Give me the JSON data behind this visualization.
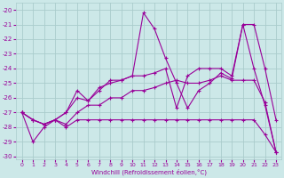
{
  "xlabel": "Windchill (Refroidissement éolien,°C)",
  "bg_color": "#cce8e8",
  "grid_color": "#aacccc",
  "line_color": "#990099",
  "xlim": [
    -0.5,
    23.5
  ],
  "ylim": [
    -30.2,
    -19.5
  ],
  "yticks": [
    -30,
    -29,
    -28,
    -27,
    -26,
    -25,
    -24,
    -23,
    -22,
    -21,
    -20
  ],
  "xticks": [
    0,
    1,
    2,
    3,
    4,
    5,
    6,
    7,
    8,
    9,
    10,
    11,
    12,
    13,
    14,
    15,
    16,
    17,
    18,
    19,
    20,
    21,
    22,
    23
  ],
  "lines": [
    {
      "x": [
        0,
        1,
        2,
        3,
        4,
        5,
        6,
        7,
        8,
        9,
        10,
        11,
        12,
        13,
        14,
        15,
        16,
        17,
        18,
        19,
        20,
        21,
        22,
        23
      ],
      "y": [
        -27,
        -29,
        -28,
        -27.5,
        -28,
        -27.5,
        -27.5,
        -27.5,
        -27.5,
        -27.5,
        -27.5,
        -27.5,
        -27.5,
        -27.5,
        -27.5,
        -27.5,
        -27.5,
        -27.5,
        -27.5,
        -27.5,
        -27.5,
        -27.5,
        -28.5,
        -29.7
      ]
    },
    {
      "x": [
        0,
        1,
        2,
        3,
        4,
        5,
        6,
        7,
        8,
        9,
        10,
        11,
        12,
        13,
        14,
        15,
        16,
        17,
        18,
        19,
        20,
        21,
        22,
        23
      ],
      "y": [
        -27,
        -27.5,
        -27.8,
        -27.5,
        -27.8,
        -27,
        -26.5,
        -26.5,
        -26,
        -26,
        -25.5,
        -25.5,
        -25.3,
        -25,
        -24.8,
        -25,
        -25,
        -24.8,
        -24.5,
        -24.8,
        -24.8,
        -24.8,
        -26.3,
        -29.7
      ]
    },
    {
      "x": [
        0,
        1,
        2,
        3,
        4,
        5,
        6,
        7,
        8,
        9,
        10,
        11,
        12,
        13,
        14,
        15,
        16,
        17,
        18,
        19,
        20,
        21,
        22,
        23
      ],
      "y": [
        -27,
        -27.5,
        -27.8,
        -27.5,
        -27,
        -25.5,
        -26.2,
        -25.3,
        -25,
        -24.8,
        -24.5,
        -20.2,
        -21.3,
        -23.3,
        -25,
        -26.7,
        -25.5,
        -25,
        -24.3,
        -24.7,
        -21.0,
        -24.0,
        -26.5,
        -29.7
      ]
    },
    {
      "x": [
        0,
        1,
        2,
        3,
        4,
        5,
        6,
        7,
        8,
        9,
        10,
        11,
        12,
        13,
        14,
        15,
        16,
        17,
        18,
        19,
        20,
        21,
        22,
        23
      ],
      "y": [
        -27,
        -27.5,
        -27.8,
        -27.5,
        -27,
        -26,
        -26.2,
        -25.5,
        -24.8,
        -24.8,
        -24.5,
        -24.5,
        -24.3,
        -24.0,
        -26.7,
        -24.5,
        -24.0,
        -24.0,
        -24.0,
        -24.5,
        -21.0,
        -21.0,
        -24.0,
        -27.5
      ]
    }
  ]
}
